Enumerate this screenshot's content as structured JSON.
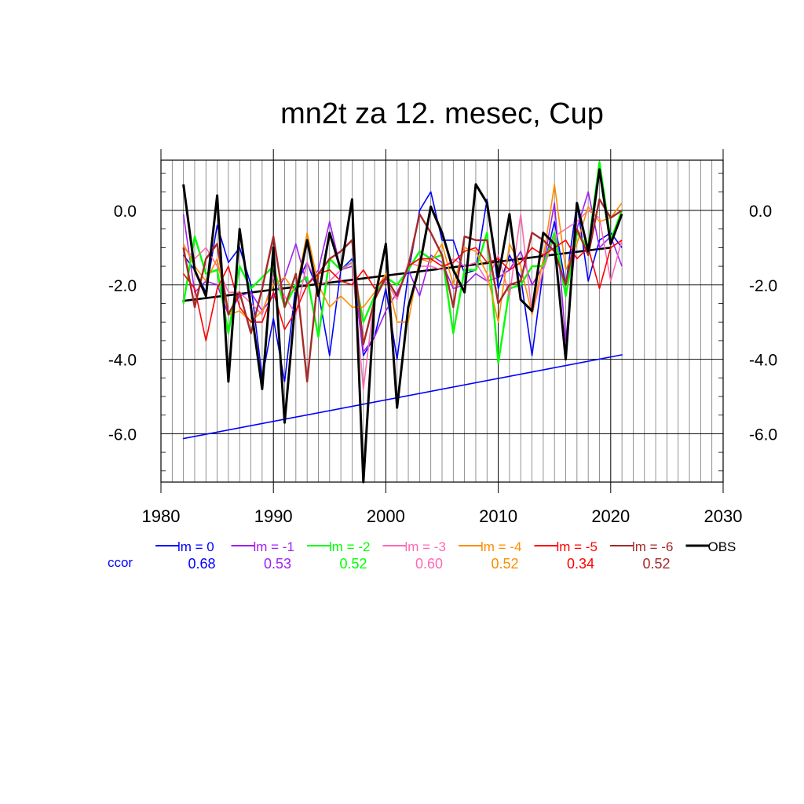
{
  "chart_data": {
    "type": "line",
    "title": "mn2t za 12. mesec, Cup",
    "xlabel": "",
    "ylabel": "",
    "xlim": [
      1980,
      2030
    ],
    "ylim": [
      -7.3,
      1.35
    ],
    "x_ticks": [
      {
        "value": 1980,
        "label": "1980"
      },
      {
        "value": 1990,
        "label": "1990"
      },
      {
        "value": 2000,
        "label": "2000"
      },
      {
        "value": 2010,
        "label": "2010"
      },
      {
        "value": 2020,
        "label": "2020"
      },
      {
        "value": 2030,
        "label": "2030"
      }
    ],
    "y_ticks": [
      {
        "value": 0,
        "label": "0.0"
      },
      {
        "value": -2,
        "label": "-2.0"
      },
      {
        "value": -4,
        "label": "-4.0"
      },
      {
        "value": -6,
        "label": "-6.0"
      }
    ],
    "grid": true,
    "x": [
      1982,
      1983,
      1984,
      1985,
      1986,
      1987,
      1988,
      1989,
      1990,
      1991,
      1992,
      1993,
      1994,
      1995,
      1996,
      1997,
      1998,
      1999,
      2000,
      2001,
      2002,
      2003,
      2004,
      2005,
      2006,
      2007,
      2008,
      2009,
      2010,
      2011,
      2012,
      2013,
      2014,
      2015,
      2016,
      2017,
      2018,
      2019,
      2020,
      2021
    ],
    "series": [
      {
        "name": "lm = 0",
        "color": "#0000ff",
        "width": 1.6,
        "values": [
          -1.2,
          -1.6,
          -2.2,
          -0.4,
          -1.4,
          -1.0,
          -2.0,
          -4.5,
          -2.9,
          -4.6,
          -2.0,
          -1.4,
          -2.2,
          -3.9,
          -1.6,
          -1.3,
          -3.9,
          -3.4,
          -2.1,
          -4.0,
          -1.7,
          0.0,
          0.5,
          -0.8,
          -0.8,
          -1.7,
          -1.6,
          0.3,
          -2.1,
          -1.2,
          -1.8,
          -3.9,
          -1.6,
          -0.3,
          -2.0,
          0.2,
          -1.9,
          -0.8,
          -0.6,
          -1.0
        ]
      },
      {
        "name": "lm = -1",
        "color": "#a020f0",
        "width": 1.6,
        "values": [
          -0.1,
          -2.2,
          -1.9,
          -2.0,
          -2.8,
          -2.3,
          -2.2,
          -2.7,
          -2.3,
          -1.8,
          -0.9,
          -2.0,
          -1.6,
          -0.3,
          -1.6,
          -1.5,
          -3.8,
          -3.4,
          -2.7,
          -2.2,
          -1.6,
          -2.3,
          -1.2,
          -1.4,
          -2.1,
          -2.0,
          -1.7,
          -1.9,
          -1.8,
          -1.6,
          -1.1,
          -2.0,
          -1.5,
          0.2,
          -3.5,
          -0.5,
          0.5,
          -1.0,
          -0.7,
          -1.5
        ]
      },
      {
        "name": "lm = -2",
        "color": "#00ff00",
        "width": 2.4,
        "values": [
          -2.5,
          -0.7,
          -1.7,
          -1.6,
          -3.3,
          -1.5,
          -2.1,
          -1.8,
          -1.5,
          -2.6,
          -2.0,
          -1.8,
          -3.4,
          -1.3,
          -1.6,
          -1.4,
          -3.0,
          -2.3,
          -1.8,
          -2.0,
          -1.6,
          -1.1,
          -1.3,
          -1.2,
          -3.3,
          -1.6,
          -1.6,
          -0.6,
          -4.1,
          -2.1,
          -2.0,
          -1.5,
          -1.5,
          -0.6,
          -2.3,
          -0.6,
          -1.0,
          1.3,
          -0.8,
          0.0
        ]
      },
      {
        "name": "lm = -3",
        "color": "#ff69b4",
        "width": 1.6,
        "values": [
          -1.0,
          -1.3,
          -1.0,
          -1.5,
          -2.2,
          -2.2,
          -2.5,
          -2.8,
          -1.8,
          -2.3,
          -2.8,
          -1.4,
          -2.0,
          -1.9,
          -1.6,
          -1.4,
          -4.8,
          -2.3,
          -1.9,
          -2.4,
          -1.4,
          -1.5,
          -1.5,
          -1.6,
          -1.3,
          -1.5,
          -1.4,
          -1.9,
          -1.2,
          -2.3,
          -0.1,
          -2.8,
          -1.6,
          -0.7,
          -0.5,
          -0.3,
          0.0,
          -0.2,
          -1.9,
          -0.8
        ]
      },
      {
        "name": "lm = -4",
        "color": "#ff8c00",
        "width": 1.6,
        "values": [
          -0.9,
          -1.5,
          -1.9,
          -1.3,
          -2.8,
          -2.7,
          -3.0,
          -2.7,
          -2.0,
          -1.8,
          -2.2,
          -0.6,
          -2.0,
          -2.6,
          -2.3,
          -2.6,
          -2.6,
          -2.2,
          -1.7,
          -3.0,
          -3.0,
          -1.3,
          -1.4,
          -0.9,
          -2.0,
          -1.0,
          -1.1,
          -1.7,
          -3.0,
          -0.9,
          -1.5,
          -2.8,
          -1.3,
          0.7,
          -1.6,
          -0.9,
          0.1,
          -0.3,
          -0.2,
          0.2
        ]
      },
      {
        "name": "lm = -5",
        "color": "#ff0000",
        "width": 1.6,
        "values": [
          -1.7,
          -2.1,
          -3.5,
          -2.1,
          -1.5,
          -2.6,
          -3.0,
          -3.0,
          -2.2,
          -3.2,
          -2.7,
          -2.0,
          -1.7,
          -1.6,
          -1.9,
          -2.0,
          -1.6,
          -2.1,
          -1.8,
          -2.3,
          -1.5,
          -1.3,
          -1.3,
          -1.5,
          -1.4,
          -1.1,
          -1.0,
          -1.4,
          -1.3,
          -1.6,
          -1.4,
          -1.0,
          -1.2,
          -1.0,
          -0.8,
          -1.3,
          -1.0,
          -2.1,
          -1.0,
          -0.8
        ]
      },
      {
        "name": "lm = -6",
        "color": "#a52a2a",
        "width": 2.4,
        "values": [
          -1.0,
          -2.6,
          -1.3,
          -0.9,
          -2.8,
          -2.2,
          -3.3,
          -2.1,
          -0.7,
          -2.6,
          -1.7,
          -4.6,
          -1.7,
          -1.3,
          -1.1,
          -0.8,
          -3.6,
          -2.4,
          -1.8,
          -2.3,
          -1.5,
          -0.1,
          -0.6,
          -1.2,
          -2.6,
          -0.7,
          -0.8,
          -0.8,
          -2.5,
          -2.0,
          -1.9,
          -0.6,
          -0.8,
          -1.1,
          -2.0,
          -0.5,
          -1.2,
          0.3,
          -0.2,
          0.0
        ]
      },
      {
        "name": "OBS",
        "color": "#000000",
        "width": 3.0,
        "values": [
          0.7,
          -1.6,
          -2.3,
          0.4,
          -4.6,
          -0.5,
          -2.6,
          -4.8,
          -1.0,
          -5.7,
          -2.3,
          -0.8,
          -2.3,
          -0.6,
          -1.6,
          0.3,
          -7.3,
          -2.4,
          -0.9,
          -5.3,
          -2.6,
          -1.5,
          0.1,
          -0.6,
          -1.6,
          -2.2,
          0.7,
          0.2,
          -1.8,
          -0.1,
          -2.4,
          -2.7,
          -0.6,
          -0.9,
          -4.0,
          0.2,
          -1.1,
          1.1,
          -0.9,
          -0.1
        ]
      }
    ],
    "trend_lines": [
      {
        "series": "OBS",
        "color": "#000000",
        "width": 2.6,
        "x": [
          1982,
          2020
        ],
        "y": [
          -2.43,
          -1.0
        ]
      },
      {
        "series": "lm = 0",
        "color": "#0000ff",
        "width": 1.6,
        "x": [
          1982,
          2021
        ],
        "y": [
          -6.13,
          -3.88
        ]
      }
    ],
    "legend": {
      "placement": "below",
      "ccor_label": "ccor",
      "ccor_color": "#0000ff",
      "entries": [
        {
          "label": "lm = 0",
          "color": "#0000ff",
          "ccor": "0.68"
        },
        {
          "label": "lm = -1",
          "color": "#a020f0",
          "ccor": "0.53"
        },
        {
          "label": "lm = -2",
          "color": "#00ff00",
          "ccor": "0.52"
        },
        {
          "label": "lm = -3",
          "color": "#ff69b4",
          "ccor": "0.60"
        },
        {
          "label": "lm = -4",
          "color": "#ff8c00",
          "ccor": "0.52"
        },
        {
          "label": "lm = -5",
          "color": "#ff0000",
          "ccor": "0.34"
        },
        {
          "label": "lm = -6",
          "color": "#a52a2a",
          "ccor": "0.52"
        },
        {
          "label": "OBS",
          "color": "#000000",
          "ccor": ""
        }
      ]
    }
  }
}
